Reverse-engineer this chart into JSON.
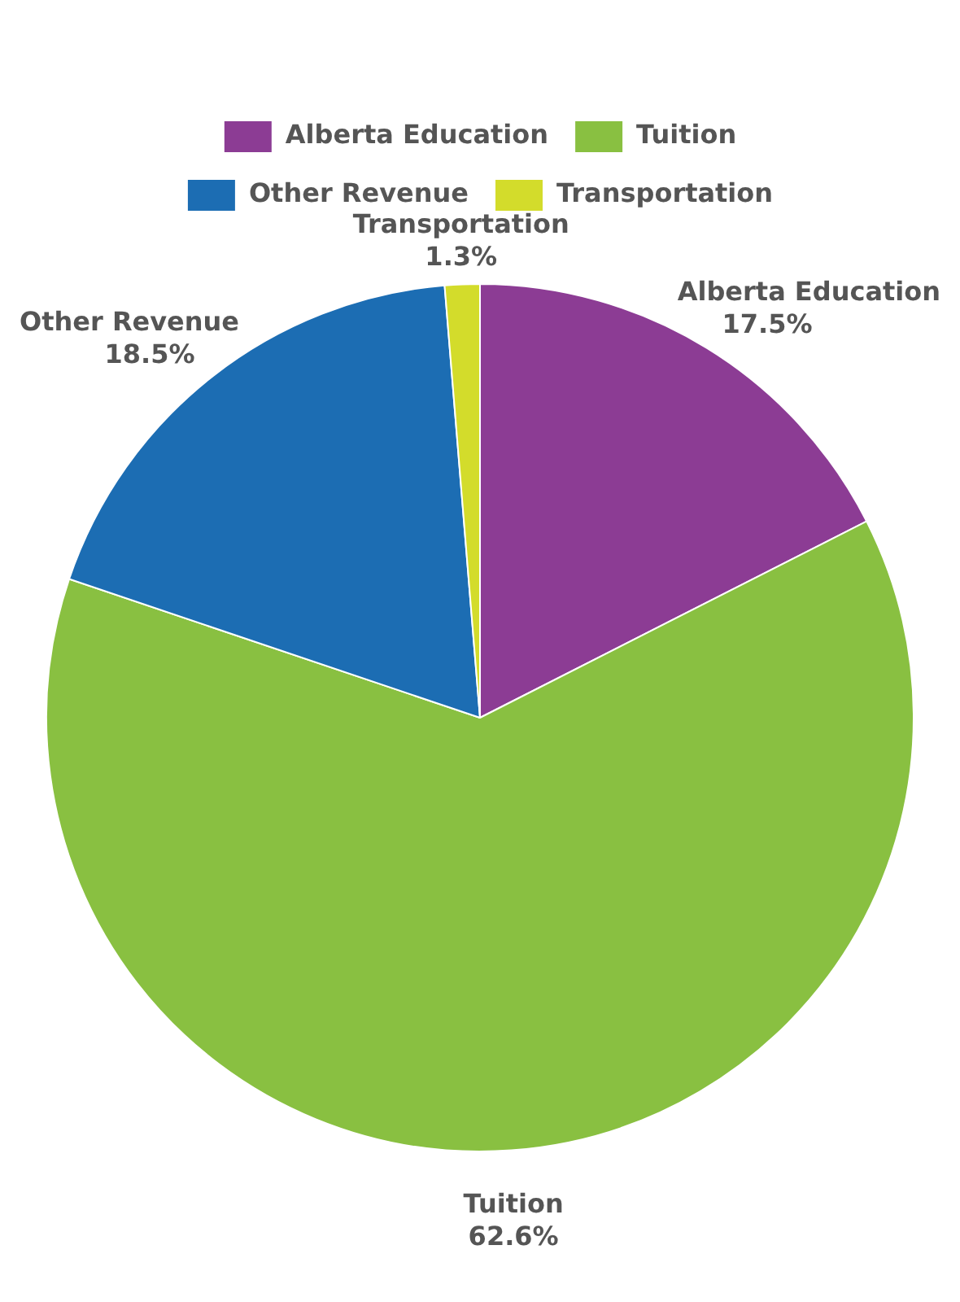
{
  "chart_data": {
    "type": "pie",
    "categories": [
      "Alberta Education",
      "Tuition",
      "Other Revenue",
      "Transportation"
    ],
    "values": [
      17.5,
      62.6,
      18.5,
      1.3
    ],
    "colors": [
      "#8c3c94",
      "#89c041",
      "#1c6db3",
      "#d3dc2b"
    ],
    "value_labels": [
      "17.5%",
      "62.6%",
      "18.5%",
      "1.3%"
    ],
    "legend": "top"
  }
}
